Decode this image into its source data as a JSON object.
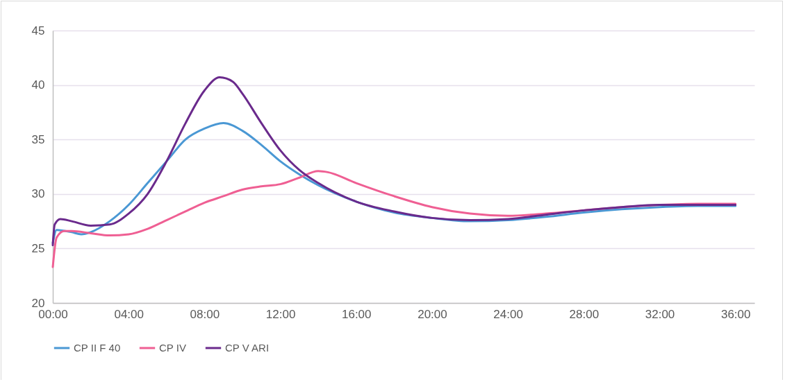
{
  "chart_data": {
    "type": "line",
    "xlim": [
      0,
      37
    ],
    "xticks": [
      {
        "value": 0,
        "label": "00:00"
      },
      {
        "value": 4,
        "label": "04:00"
      },
      {
        "value": 8,
        "label": "08:00"
      },
      {
        "value": 12,
        "label": "12:00"
      },
      {
        "value": 16,
        "label": "16:00"
      },
      {
        "value": 20,
        "label": "20:00"
      },
      {
        "value": 24,
        "label": "24:00"
      },
      {
        "value": 28,
        "label": "28:00"
      },
      {
        "value": 32,
        "label": "32:00"
      },
      {
        "value": 36,
        "label": "36:00"
      }
    ],
    "ylim": [
      20,
      45
    ],
    "yticks": [
      20,
      25,
      30,
      35,
      40,
      45
    ],
    "grid": "y",
    "legend": "bottom",
    "marker": "none",
    "line_style": "solid",
    "series": [
      {
        "name": "CP II F 40",
        "color": "#4a98d4",
        "x": [
          0,
          0.2,
          1,
          1.5,
          2,
          3,
          4,
          5,
          6,
          7,
          8,
          9,
          10,
          11,
          12,
          13,
          14,
          16,
          18,
          20,
          22,
          24,
          26,
          28,
          30,
          32,
          34,
          36
        ],
        "values": [
          25.5,
          26.7,
          26.5,
          26.3,
          26.5,
          27.5,
          29,
          31,
          33,
          35,
          36,
          36.5,
          35.8,
          34.5,
          33,
          31.8,
          30.8,
          29.3,
          28.3,
          27.8,
          27.5,
          27.6,
          27.9,
          28.3,
          28.6,
          28.8,
          28.9,
          28.9
        ]
      },
      {
        "name": "CP IV",
        "color": "#ef5f93",
        "x": [
          0,
          0.2,
          0.6,
          1,
          2,
          3,
          4,
          5,
          6,
          7,
          8,
          9,
          10,
          11,
          12,
          13,
          14,
          14.5,
          16,
          18,
          20,
          22,
          24,
          26,
          28,
          30,
          32,
          34,
          36
        ],
        "values": [
          23.3,
          26,
          26.6,
          26.6,
          26.4,
          26.2,
          26.3,
          26.8,
          27.6,
          28.4,
          29.2,
          29.8,
          30.4,
          30.7,
          30.9,
          31.5,
          32.1,
          32,
          31,
          29.8,
          28.8,
          28.2,
          28,
          28.2,
          28.5,
          28.8,
          29,
          29.1,
          29.1
        ]
      },
      {
        "name": "CP V ARI",
        "color": "#6a2a8c",
        "x": [
          0,
          0.1,
          0.4,
          1,
          2,
          3,
          4,
          5,
          6,
          7,
          8,
          8.8,
          9.5,
          10,
          11,
          12,
          13,
          14,
          16,
          18,
          20,
          22,
          24,
          26,
          28,
          30,
          32,
          34,
          36
        ],
        "values": [
          25.3,
          27.2,
          27.7,
          27.5,
          27.1,
          27.2,
          28.2,
          30,
          33,
          36.5,
          39.5,
          40.7,
          40.3,
          39.2,
          36.5,
          34,
          32.2,
          31,
          29.3,
          28.4,
          27.8,
          27.6,
          27.7,
          28.1,
          28.5,
          28.8,
          29,
          29,
          29
        ]
      }
    ]
  }
}
